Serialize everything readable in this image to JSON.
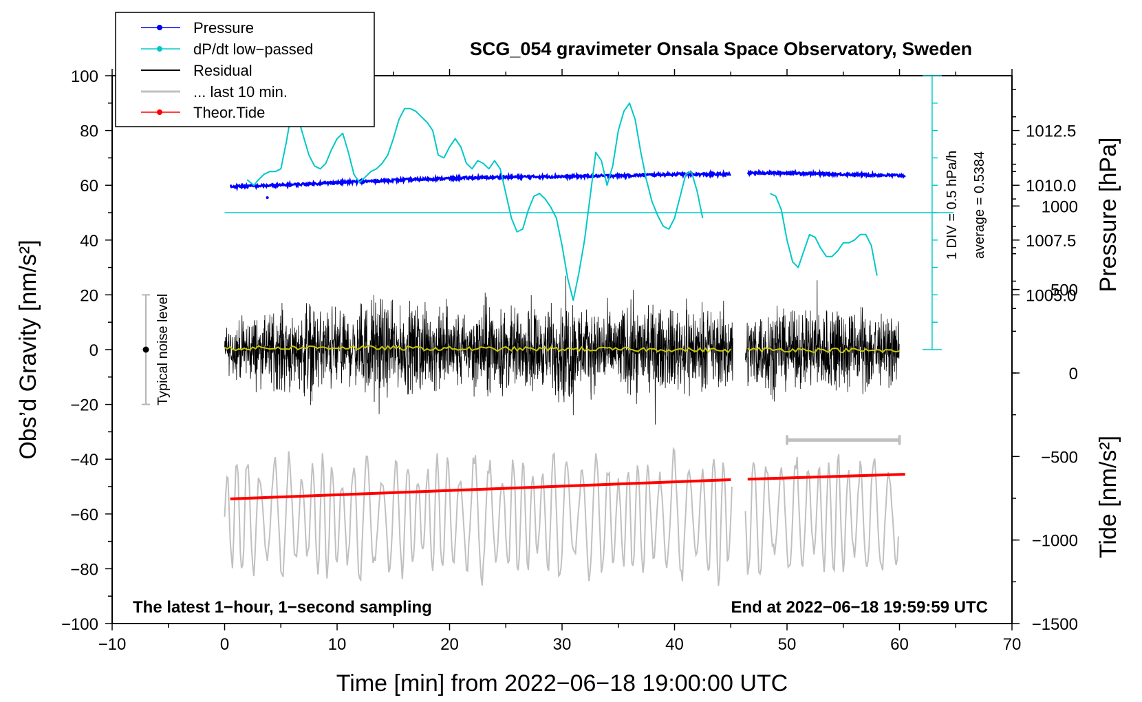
{
  "chart_data": {
    "type": "line",
    "title": "SCG_054 gravimeter Onsala Space Observatory, Sweden",
    "xlabel": "Time [min] from 2022−06−18 19:00:00 UTC",
    "ylabel_left": "Obs’d Gravity [nm/s²]",
    "ylabel_right_top": "Pressure [hPa]",
    "ylabel_right_bottom": "Tide [nm/s²]",
    "xlim": [
      -10,
      70
    ],
    "ylim": [
      -100,
      100
    ],
    "x_ticks": [
      "−10",
      "0",
      "10",
      "20",
      "30",
      "40",
      "50",
      "60",
      "70"
    ],
    "y_ticks": [
      "−100",
      "−80",
      "−60",
      "−40",
      "−20",
      "0",
      "20",
      "40",
      "60",
      "80",
      "100"
    ],
    "pressure_ticks": [
      "1012.5",
      "1010.0",
      "1007.5",
      "1005.0"
    ],
    "pressure_tick_values": [
      1012.5,
      1010.0,
      1007.5,
      1005.0
    ],
    "pressure_axis_map": {
      "hpa_at_y60": 1010.0,
      "hpa_per_gravity_unit": 0.125
    },
    "tide_ticks": [
      "1000",
      "500",
      "0",
      "−500",
      "−1000",
      "−1500"
    ],
    "tide_tick_values": [
      1000,
      500,
      0,
      -500,
      -1000,
      -1500
    ],
    "tide_axis_map": {
      "tide_at_y_minus100": -1500,
      "tide_per_gravity_unit": 16.4
    },
    "legend": [
      {
        "label": "Pressure",
        "color": "#0000ff",
        "marker": "dot"
      },
      {
        "label": "dP/dt low−passed",
        "color": "#00c8c8",
        "marker": "dot"
      },
      {
        "label": "Residual",
        "color": "#000000",
        "marker": "none"
      },
      {
        "label": "... last 10 min.",
        "color": "#c0c0c0",
        "marker": "none"
      },
      {
        "label": "Theor.Tide",
        "color": "#ff0000",
        "marker": "dot"
      }
    ],
    "annotations": {
      "noise_label": "Typical noise level",
      "noise_range": [
        -20,
        20
      ],
      "noise_x": -7,
      "div_label": "1 DIV = 0.5 hPa/h",
      "average_label": "average = 0.5384",
      "dpdt_baseline_y": 50,
      "bottom_left": "The latest 1−hour, 1−second sampling",
      "bottom_right": "End at 2022−06−18 19:59:59 UTC",
      "last10_bar_range": [
        50,
        60
      ],
      "last10_bar_y": -33
    },
    "gap": [
      45.2,
      46.3
    ],
    "series": [
      {
        "name": "Pressure",
        "color": "#0000ff",
        "x": [
          0.5,
          5,
          10,
          15,
          20,
          25,
          30,
          35,
          40,
          45,
          46.5,
          50,
          55,
          60.5
        ],
        "y": [
          59.5,
          60.0,
          61.0,
          61.8,
          62.5,
          63.0,
          63.2,
          63.5,
          64.0,
          64.0,
          64.5,
          64.5,
          64.0,
          63.5
        ]
      },
      {
        "name": "dP/dt low-passed",
        "color": "#00c8c8",
        "x": [
          2,
          2.6,
          3,
          3.5,
          4,
          4.5,
          5,
          5.5,
          6,
          6.5,
          7,
          7.5,
          8,
          8.5,
          9,
          9.5,
          10,
          10.5,
          11,
          11.5,
          12,
          12.5,
          13,
          13.5,
          14,
          14.5,
          15,
          15.5,
          16,
          16.5,
          17,
          17.5,
          18,
          18.5,
          19,
          19.5,
          20,
          20.5,
          21,
          21.5,
          22,
          22.5,
          23,
          23.5,
          24,
          24.5,
          25,
          25.5,
          26,
          26.5,
          27,
          27.5,
          28,
          28.5,
          29,
          29.5,
          30,
          30.5,
          31,
          31.5,
          32,
          32.5,
          33,
          33.5,
          34,
          34.5,
          35,
          35.5,
          36,
          36.5,
          37,
          37.5,
          38,
          38.5,
          39,
          39.5,
          40,
          40.5,
          41,
          41.5,
          42,
          42.5
        ],
        "y": [
          62,
          60,
          62,
          64,
          65,
          65,
          66,
          76,
          88,
          85,
          78,
          71,
          67,
          66,
          68,
          73,
          77,
          79,
          72,
          64,
          61,
          63,
          65,
          66,
          68,
          71,
          77,
          84,
          88,
          88,
          87,
          85,
          83,
          80,
          71,
          70,
          74,
          77,
          74,
          68,
          66,
          69,
          68,
          66,
          69,
          66,
          57,
          48,
          43,
          44,
          51,
          56,
          57,
          55,
          52,
          48,
          38,
          26,
          18,
          28,
          40,
          56,
          72,
          69,
          60,
          67,
          80,
          87,
          90,
          84,
          72,
          62,
          54,
          49,
          45,
          44,
          48,
          56,
          64,
          65,
          58,
          48
        ],
        "x2": [
          48.5,
          49,
          49.5,
          50,
          50.5,
          51,
          51.5,
          52,
          52.5,
          53,
          53.5,
          54,
          54.5,
          55,
          55.5,
          56,
          56.5,
          57,
          57.5,
          58
        ],
        "y2": [
          57,
          56,
          51,
          40,
          32,
          30,
          36,
          42,
          41,
          37,
          34,
          34,
          36,
          39,
          39,
          40,
          42,
          42,
          38,
          27
        ]
      },
      {
        "name": "Residual",
        "color": "#000000",
        "x_range": [
          0,
          60
        ],
        "amplitude_envelope": [
          12,
          15,
          18,
          16,
          20,
          22,
          18,
          25,
          20,
          22,
          20,
          18,
          24,
          28,
          22,
          20,
          22,
          24,
          18,
          22,
          20,
          18,
          22,
          26,
          22,
          20,
          18,
          22,
          20,
          24,
          30,
          24,
          20,
          22,
          20,
          22,
          24,
          20,
          22,
          20,
          22,
          24,
          18,
          20,
          22,
          20,
          18,
          20,
          22,
          20,
          18,
          20,
          24,
          22,
          26,
          22,
          20,
          24,
          18,
          16,
          14
        ]
      },
      {
        "name": "Smoothed residual",
        "color": "#c8c800",
        "x": [
          0,
          10,
          20,
          30,
          40,
          45,
          46.5,
          50,
          60
        ],
        "y": [
          0.5,
          0.8,
          0.3,
          0.2,
          0,
          -0.3,
          0,
          0,
          -0.5
        ]
      },
      {
        "name": "... last 10 min.",
        "color": "#c0c0c0",
        "x_range": [
          0,
          60
        ],
        "y_center": -61,
        "y_amplitude": 22
      },
      {
        "name": "Theor.Tide",
        "color": "#ff0000",
        "x": [
          0.5,
          45,
          46.5,
          60.5
        ],
        "y": [
          -54.5,
          -47.5,
          -47.3,
          -45.5
        ]
      }
    ]
  }
}
